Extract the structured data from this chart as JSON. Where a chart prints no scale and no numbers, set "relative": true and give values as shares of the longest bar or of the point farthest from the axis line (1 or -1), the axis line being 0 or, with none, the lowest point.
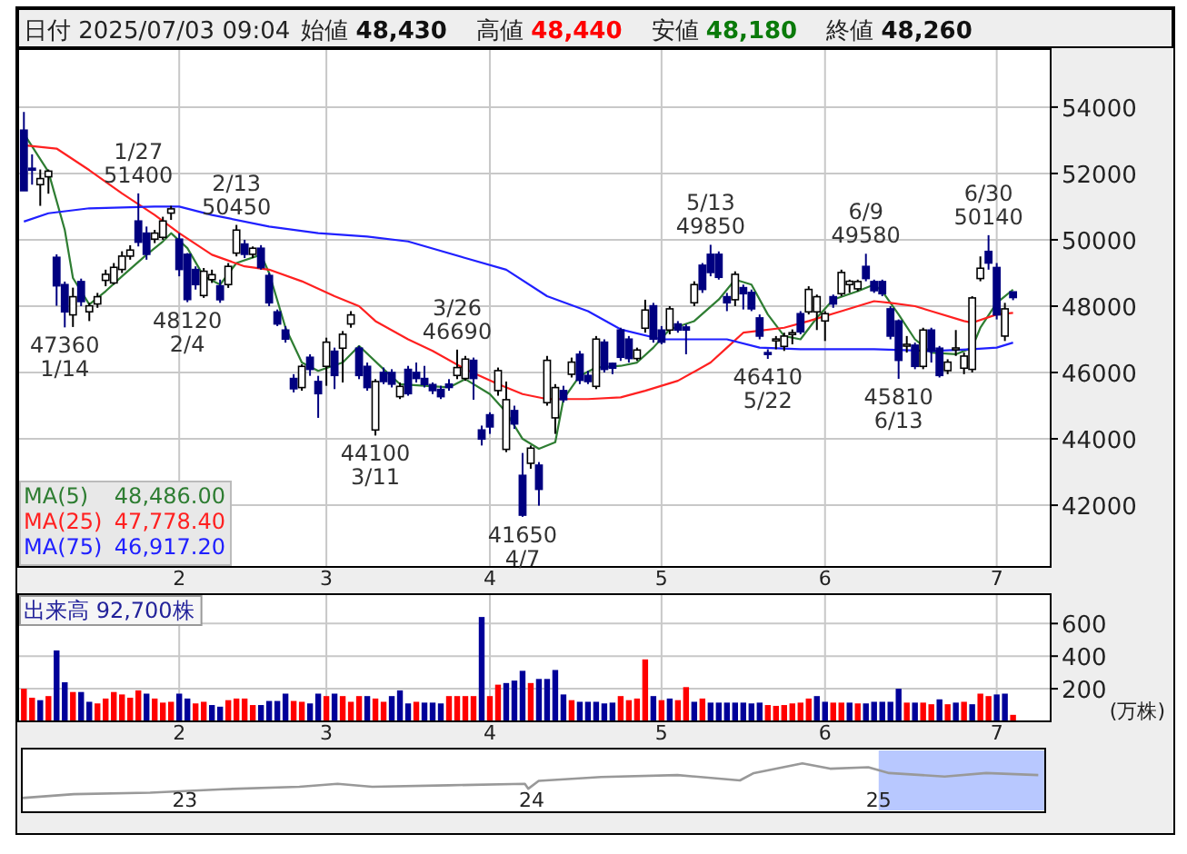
{
  "chart_data": [
    {
      "type": "candlestick",
      "title": "日付 2025/07/03 09:04",
      "annotations": [
        "始値 **48,430**",
        "高値 **48,440**",
        "安値 **48,180**",
        "終値 **48,260**",
        {
          "text": "47360\n1/14",
          "y": 47360
        },
        {
          "text": "1/27\n51400",
          "y": 51400
        },
        {
          "text": "48120\n2/4",
          "y": 48120
        },
        {
          "text": "2/13\n50450",
          "y": 50450
        },
        {
          "text": "44100\n3/11",
          "y": 44100
        },
        {
          "text": "3/26\n46690",
          "y": 46690
        },
        {
          "text": "41650\n4/7",
          "y": 41650
        },
        {
          "text": "5/13\n49850",
          "y": 49850
        },
        {
          "text": "46410\n5/22",
          "y": 46410
        },
        {
          "text": "6/9\n49580",
          "y": 49580
        },
        {
          "text": "45810\n6/13",
          "y": 45810
        },
        {
          "text": "6/30\n50140",
          "y": 50140
        }
      ],
      "categories": [
        null,
        null,
        null,
        null,
        null,
        null,
        null,
        null,
        null,
        null,
        null,
        null,
        null,
        null,
        null,
        null,
        null,
        null,
        null,
        "2",
        null,
        null,
        null,
        null,
        null,
        null,
        null,
        null,
        null,
        null,
        null,
        null,
        null,
        null,
        null,
        null,
        null,
        "3",
        null,
        null,
        null,
        null,
        null,
        null,
        null,
        null,
        null,
        null,
        null,
        null,
        null,
        null,
        null,
        null,
        null,
        null,
        null,
        "4",
        null,
        null,
        null,
        null,
        null,
        null,
        null,
        null,
        null,
        null,
        null,
        null,
        null,
        null,
        null,
        null,
        null,
        null,
        null,
        null,
        "5",
        null,
        null,
        null,
        null,
        null,
        null,
        null,
        null,
        null,
        null,
        null,
        null,
        null,
        null,
        null,
        null,
        null,
        null,
        null,
        "6",
        null,
        null,
        null,
        null,
        null,
        null,
        null,
        null,
        null,
        null,
        null,
        null,
        null,
        null,
        null,
        null,
        null,
        null,
        null,
        null,
        "7",
        null,
        null
      ],
      "ohlc": [
        [
          53306,
          53854,
          51480,
          51480
        ],
        [
          52156,
          52576,
          51663,
          52120
        ],
        [
          51663,
          52120,
          51024,
          51846
        ],
        [
          51900,
          52120,
          51390,
          52070
        ],
        [
          49472,
          49563,
          48011,
          48613
        ],
        [
          48650,
          48741,
          47360,
          47828
        ],
        [
          47737,
          48558,
          47372,
          48285
        ],
        [
          48741,
          48830,
          48000,
          48139
        ],
        [
          47830,
          48100,
          47550,
          48010
        ],
        [
          48066,
          48400,
          47950,
          48285
        ],
        [
          48778,
          49100,
          48600,
          48960
        ],
        [
          48700,
          49300,
          48650,
          49170
        ],
        [
          49106,
          49654,
          49000,
          49508
        ],
        [
          49508,
          49837,
          49400,
          49691
        ],
        [
          50567,
          51400,
          49800,
          49928
        ],
        [
          50202,
          50400,
          49400,
          49563
        ],
        [
          50020,
          50300,
          49900,
          50202
        ],
        [
          50074,
          50695,
          50000,
          50567
        ],
        [
          50805,
          51024,
          50600,
          50933
        ],
        [
          50020,
          50200,
          48900,
          49106
        ],
        [
          49563,
          49600,
          48120,
          48200
        ],
        [
          49106,
          49200,
          48500,
          48650
        ],
        [
          48321,
          49150,
          48250,
          49052
        ],
        [
          48800,
          49100,
          48700,
          48950
        ],
        [
          48613,
          48800,
          48100,
          48194
        ],
        [
          48650,
          49300,
          48550,
          49200
        ],
        [
          49600,
          50450,
          49500,
          50293
        ],
        [
          49873,
          50000,
          49450,
          49563
        ],
        [
          49563,
          49800,
          49450,
          49746
        ],
        [
          49746,
          49840,
          49100,
          49161
        ],
        [
          48924,
          49000,
          48000,
          48102
        ],
        [
          47828,
          47900,
          47400,
          47463
        ],
        [
          47280,
          47400,
          46900,
          47007
        ],
        [
          45820,
          45950,
          45400,
          45510
        ],
        [
          45546,
          46250,
          45450,
          46185
        ],
        [
          46459,
          46550,
          45900,
          46094
        ],
        [
          45728,
          45900,
          44633,
          45363
        ],
        [
          46185,
          47050,
          45600,
          46915
        ],
        [
          46641,
          46750,
          45500,
          45911
        ],
        [
          46733,
          47250,
          45700,
          47153
        ],
        [
          47463,
          47850,
          47350,
          47737
        ],
        [
          46733,
          46800,
          45800,
          45911
        ],
        [
          46185,
          46300,
          45450,
          45546
        ],
        [
          44268,
          45800,
          44100,
          45728
        ],
        [
          46003,
          46150,
          45650,
          45728
        ],
        [
          46000,
          46100,
          45550,
          45650
        ],
        [
          45272,
          45700,
          45200,
          45582
        ],
        [
          46094,
          46200,
          45300,
          45363
        ],
        [
          46003,
          46300,
          45700,
          45820
        ],
        [
          45820,
          46200,
          45550,
          45640
        ],
        [
          45637,
          45700,
          45350,
          45455
        ],
        [
          45491,
          45600,
          45200,
          45272
        ],
        [
          45650,
          45800,
          45450,
          45550
        ],
        [
          45911,
          46690,
          45800,
          46149
        ],
        [
          45820,
          46500,
          45750,
          46404
        ],
        [
          46367,
          46450,
          45180,
          45820
        ],
        [
          44268,
          44400,
          43800,
          43994
        ],
        [
          44725,
          44800,
          44150,
          44360
        ],
        [
          45455,
          46150,
          45300,
          46057
        ],
        [
          43683,
          45728,
          43600,
          45181
        ],
        [
          44852,
          45000,
          44300,
          44450
        ],
        [
          42900,
          43574,
          41650,
          41700
        ],
        [
          43263,
          43800,
          43100,
          43720
        ],
        [
          43208,
          43300,
          41985,
          42478
        ],
        [
          45090,
          46500,
          45000,
          46367
        ],
        [
          44633,
          45650,
          44150,
          45546
        ],
        [
          45455,
          45600,
          45100,
          45181
        ],
        [
          45947,
          46450,
          45850,
          46313
        ],
        [
          46550,
          46650,
          45650,
          45765
        ],
        [
          45911,
          46050,
          45650,
          45728
        ],
        [
          45582,
          47100,
          45500,
          47007
        ],
        [
          46915,
          47000,
          46000,
          46094
        ],
        [
          46276,
          46300,
          45950,
          46130
        ],
        [
          47280,
          47350,
          46350,
          46459
        ],
        [
          47007,
          47100,
          46300,
          46422
        ],
        [
          46422,
          46750,
          46350,
          46678
        ],
        [
          47335,
          48194,
          47200,
          47883
        ],
        [
          48011,
          48100,
          46900,
          47007
        ],
        [
          47280,
          47400,
          46850,
          46915
        ],
        [
          47280,
          48000,
          47150,
          47919
        ],
        [
          47463,
          47550,
          47200,
          47280
        ],
        [
          47371,
          47450,
          46550,
          47280
        ],
        [
          48102,
          48750,
          48000,
          48650
        ],
        [
          49234,
          49300,
          48400,
          48504
        ],
        [
          49563,
          49850,
          48900,
          49015
        ],
        [
          49563,
          49650,
          48800,
          48869
        ],
        [
          48285,
          48400,
          47850,
          48102
        ],
        [
          48194,
          49050,
          48000,
          48960
        ],
        [
          48558,
          48650,
          47900,
          48376
        ],
        [
          48413,
          48500,
          47850,
          47919
        ],
        [
          47646,
          47750,
          47000,
          47098
        ],
        [
          46600,
          46700,
          46410,
          46580
        ],
        [
          47000,
          47100,
          46700,
          47010
        ],
        [
          46787,
          47200,
          46650,
          47098
        ],
        [
          47170,
          47300,
          46850,
          47200
        ],
        [
          47773,
          47850,
          47150,
          47226
        ],
        [
          47828,
          48600,
          47750,
          48504
        ],
        [
          47828,
          48350,
          47280,
          48285
        ],
        [
          47554,
          47850,
          46950,
          47773
        ],
        [
          48285,
          48350,
          47950,
          48066
        ],
        [
          48376,
          49100,
          48300,
          49015
        ],
        [
          48650,
          48800,
          48400,
          48750
        ],
        [
          48522,
          48800,
          48450,
          48741
        ],
        [
          49198,
          49580,
          48750,
          48833
        ],
        [
          48741,
          48800,
          48400,
          48467
        ],
        [
          48741,
          48800,
          48300,
          48376
        ],
        [
          47919,
          48000,
          47000,
          47098
        ],
        [
          47554,
          47600,
          45810,
          46367
        ],
        [
          46800,
          47100,
          46600,
          46850
        ],
        [
          46824,
          46900,
          46100,
          46185
        ],
        [
          46185,
          47350,
          46100,
          47280
        ],
        [
          47280,
          47350,
          46300,
          46641
        ],
        [
          46733,
          46800,
          45850,
          45911
        ],
        [
          46057,
          46400,
          45950,
          46313
        ],
        [
          46720,
          47280,
          46500,
          46740
        ],
        [
          46130,
          46600,
          45950,
          46495
        ],
        [
          46094,
          48300,
          46000,
          48248
        ],
        [
          48833,
          49500,
          48750,
          49143
        ],
        [
          49650,
          50140,
          49100,
          49300
        ],
        [
          49165,
          49300,
          47600,
          47737
        ],
        [
          47098,
          48100,
          46950,
          47919
        ],
        [
          48430,
          48440,
          48180,
          48260
        ]
      ],
      "series": [
        {
          "name": "MA(5) 48,486.00",
          "type": "line",
          "color": "#2e7d32",
          "values": [
            53200,
            null,
            null,
            52050,
            null,
            50300,
            48850,
            null,
            48050,
            null,
            48450,
            null,
            48900,
            null,
            null,
            49550,
            null,
            49950,
            50200,
            null,
            49750,
            null,
            48900,
            null,
            48650,
            null,
            49300,
            null,
            null,
            49550,
            49000,
            null,
            47350,
            null,
            46300,
            null,
            46050,
            null,
            null,
            46300,
            null,
            46800,
            null,
            null,
            46100,
            null,
            45650,
            null,
            null,
            45600,
            null,
            null,
            45550,
            null,
            45800,
            null,
            null,
            45350,
            null,
            44800,
            null,
            44000,
            null,
            43700,
            null,
            43900,
            45200,
            null,
            45900,
            null,
            46150,
            null,
            null,
            46200,
            null,
            46300,
            null,
            46750,
            null,
            47300,
            null,
            null,
            47550,
            null,
            null,
            48200,
            null,
            48800,
            null,
            48650,
            null,
            47750,
            null,
            47100,
            null,
            47000,
            null,
            47650,
            null,
            48200,
            null,
            null,
            48450,
            null,
            48650,
            48450,
            null,
            47750,
            null,
            47000,
            null,
            46600,
            null,
            null,
            46550,
            null,
            46750,
            47350,
            null,
            48100,
            48300,
            48500
          ]
        },
        {
          "name": "MA(25) 47,778.40",
          "type": "line",
          "color": "#ff2020",
          "values": [
            52850,
            null,
            null,
            null,
            52750,
            null,
            null,
            null,
            52100,
            null,
            null,
            null,
            51400,
            null,
            null,
            null,
            50750,
            null,
            null,
            50200,
            null,
            null,
            null,
            49550,
            null,
            null,
            null,
            49200,
            null,
            null,
            49100,
            null,
            null,
            null,
            48750,
            null,
            null,
            null,
            48300,
            null,
            null,
            48000,
            null,
            47550,
            null,
            null,
            null,
            47000,
            null,
            null,
            46650,
            null,
            null,
            null,
            46100,
            null,
            null,
            null,
            45650,
            null,
            null,
            45350,
            null,
            null,
            45200,
            null,
            null,
            null,
            null,
            45200,
            null,
            null,
            null,
            45250,
            null,
            null,
            45450,
            null,
            null,
            null,
            45750,
            null,
            null,
            null,
            46300,
            null,
            46750,
            null,
            47200,
            null,
            null,
            null,
            null,
            47350,
            null,
            null,
            47550,
            null,
            null,
            null,
            47850,
            null,
            null,
            null,
            48150,
            null,
            48100,
            null,
            null,
            48000,
            null,
            47850,
            null,
            null,
            null,
            47550,
            47500,
            null,
            null,
            47750,
            null,
            47800
          ]
        },
        {
          "name": "MA(75) 46,917.20",
          "type": "line",
          "color": "#2020ff",
          "values": [
            50550,
            null,
            null,
            50800,
            null,
            null,
            null,
            null,
            50950,
            null,
            null,
            null,
            null,
            null,
            null,
            null,
            51000,
            null,
            null,
            51000,
            null,
            null,
            null,
            50750,
            null,
            null,
            null,
            null,
            null,
            null,
            50400,
            null,
            null,
            null,
            null,
            null,
            50200,
            null,
            null,
            null,
            null,
            null,
            50100,
            null,
            null,
            null,
            null,
            49950,
            null,
            null,
            null,
            null,
            null,
            null,
            49450,
            null,
            null,
            null,
            null,
            49100,
            null,
            null,
            null,
            null,
            48300,
            null,
            null,
            null,
            null,
            47850,
            null,
            null,
            null,
            47300,
            null,
            null,
            null,
            null,
            47000,
            null,
            null,
            null,
            null,
            null,
            47000,
            null,
            47000,
            null,
            null,
            null,
            46750,
            null,
            null,
            null,
            null,
            46700,
            null,
            null,
            null,
            null,
            null,
            null,
            null,
            null,
            46700,
            null,
            null,
            null,
            null,
            null,
            null,
            46650,
            null,
            null,
            null,
            null,
            46700,
            null,
            null,
            46750,
            null,
            46900
          ]
        }
      ],
      "ylim": [
        40140,
        55750
      ],
      "yticks": [
        42000,
        44000,
        46000,
        48000,
        50000,
        52000,
        54000
      ],
      "grid": true,
      "legend": "bottom left"
    },
    {
      "type": "bar",
      "title": "出来高 92,700株",
      "ylabel": "(万株)",
      "categories": [
        null,
        null,
        null,
        null,
        null,
        null,
        null,
        null,
        null,
        null,
        null,
        null,
        null,
        null,
        null,
        null,
        null,
        null,
        null,
        "2",
        null,
        null,
        null,
        null,
        null,
        null,
        null,
        null,
        null,
        null,
        null,
        null,
        null,
        null,
        null,
        null,
        null,
        "3",
        null,
        null,
        null,
        null,
        null,
        null,
        null,
        null,
        null,
        null,
        null,
        null,
        null,
        null,
        null,
        null,
        null,
        null,
        null,
        "4",
        null,
        null,
        null,
        null,
        null,
        null,
        null,
        null,
        null,
        null,
        null,
        null,
        null,
        null,
        null,
        null,
        null,
        null,
        null,
        null,
        "5",
        null,
        null,
        null,
        null,
        null,
        null,
        null,
        null,
        null,
        null,
        null,
        null,
        null,
        null,
        null,
        null,
        null,
        null,
        null,
        "6",
        null,
        null,
        null,
        null,
        null,
        null,
        null,
        null,
        null,
        null,
        null,
        null,
        null,
        null,
        null,
        null,
        null,
        null,
        null,
        null,
        "7",
        null,
        null
      ],
      "values": [
        200,
        145,
        130,
        155,
        435,
        240,
        180,
        180,
        120,
        110,
        140,
        180,
        165,
        145,
        190,
        170,
        140,
        115,
        120,
        170,
        140,
        110,
        120,
        100,
        90,
        130,
        140,
        140,
        100,
        100,
        125,
        125,
        170,
        125,
        120,
        110,
        170,
        155,
        170,
        155,
        120,
        155,
        155,
        140,
        120,
        155,
        190,
        110,
        120,
        115,
        115,
        110,
        155,
        155,
        155,
        155,
        640,
        155,
        225,
        235,
        250,
        310,
        235,
        260,
        260,
        315,
        165,
        130,
        120,
        120,
        120,
        110,
        115,
        155,
        130,
        140,
        380,
        155,
        130,
        140,
        130,
        210,
        120,
        140,
        115,
        115,
        115,
        115,
        115,
        110,
        115,
        100,
        95,
        100,
        110,
        115,
        140,
        155,
        120,
        115,
        115,
        115,
        110,
        110,
        120,
        120,
        120,
        200,
        115,
        115,
        115,
        105,
        135,
        105,
        115,
        120,
        105,
        170,
        155,
        165,
        170,
        40
      ],
      "colors": [
        "#ff0000",
        "#ff0000",
        "#000099",
        "#ff0000",
        "#000099",
        "#000099",
        "#ff0000",
        "#000099",
        "#000099",
        "#ff0000",
        "#ff0000",
        "#ff0000",
        "#ff0000",
        "#ff0000",
        "#ff0000",
        "#000099",
        "#ff0000",
        "#ff0000",
        "#ff0000",
        "#000099",
        "#000099",
        "#ff0000",
        "#ff0000",
        "#000099",
        "#000099",
        "#ff0000",
        "#ff0000",
        "#ff0000",
        "#ff0000",
        "#000099",
        "#000099",
        "#000099",
        "#000099",
        "#ff0000",
        "#ff0000",
        "#000099",
        "#000099",
        "#ff0000",
        "#000099",
        "#ff0000",
        "#ff0000",
        "#ff0000",
        "#000099",
        "#ff0000",
        "#ff0000",
        "#000099",
        "#000099",
        "#000099",
        "#ff0000",
        "#000099",
        "#000099",
        "#000099",
        "#ff0000",
        "#ff0000",
        "#ff0000",
        "#ff0000",
        "#000099",
        "#ff0000",
        "#ff0000",
        "#000099",
        "#000099",
        "#000099",
        "#ff0000",
        "#000099",
        "#000099",
        "#000099",
        "#000099",
        "#ff0000",
        "#000099",
        "#000099",
        "#000099",
        "#000099",
        "#000099",
        "#ff0000",
        "#ff0000",
        "#ff0000",
        "#ff0000",
        "#000099",
        "#ff0000",
        "#000099",
        "#ff0000",
        "#ff0000",
        "#000099",
        "#ff0000",
        "#000099",
        "#000099",
        "#000099",
        "#000099",
        "#000099",
        "#000099",
        "#000099",
        "#ff0000",
        "#ff0000",
        "#ff0000",
        "#ff0000",
        "#ff0000",
        "#ff0000",
        "#000099",
        "#000099",
        "#ff0000",
        "#ff0000",
        "#000099",
        "#ff0000",
        "#000099",
        "#000099",
        "#000099",
        "#000099",
        "#000099",
        "#ff0000",
        "#000099",
        "#ff0000",
        "#ff0000",
        "#000099",
        "#ff0000",
        "#000099",
        "#ff0000",
        "#000099",
        "#ff0000",
        "#ff0000",
        "#000099",
        "#000099",
        "#ff0000"
      ],
      "ylim": [
        0,
        780
      ],
      "yticks": [
        200,
        400,
        600
      ],
      "grid": true
    },
    {
      "type": "line",
      "relative": true,
      "color": "#999999",
      "x": [
        22.53,
        22.68,
        22.9,
        23.11,
        23.33,
        23.44,
        23.54,
        23.76,
        23.98,
        23.99,
        24.02,
        24.2,
        24.42,
        24.6,
        24.64,
        24.78,
        24.86,
        24.97,
        25.03,
        25.19,
        25.31,
        25.46
      ],
      "values": [
        0.29,
        0.37,
        0.4,
        0.47,
        0.52,
        0.58,
        0.52,
        0.55,
        0.58,
        0.48,
        0.64,
        0.72,
        0.76,
        0.65,
        0.8,
        1,
        0.89,
        0.92,
        0.8,
        0.73,
        0.8,
        0.76
      ],
      "xlim": [
        22.53,
        25.48
      ],
      "xticks": [
        23,
        24,
        25
      ],
      "bands": [
        {
          "axis": "x",
          "from": 25.0,
          "to": 25.48,
          "color": "#b8c8ff"
        }
      ],
      "tick_labels": "x"
    }
  ]
}
